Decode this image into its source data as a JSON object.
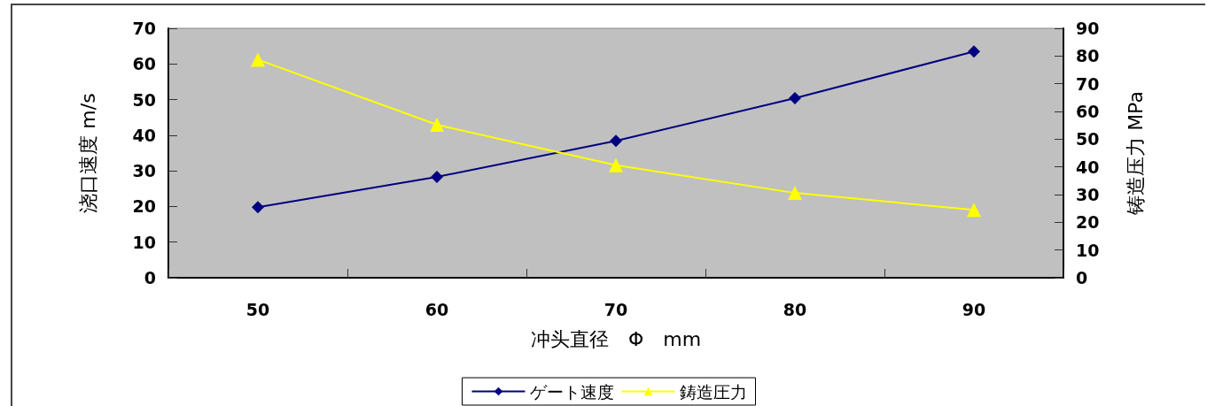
{
  "chart_data": {
    "type": "line",
    "categories": [
      "50",
      "60",
      "70",
      "80",
      "90"
    ],
    "xlabel": "冲头直径　Φ　mm",
    "ylabel": "浇口速度 m/s",
    "y2label": "铸造压力 MPa",
    "series": [
      {
        "name": "ゲート速度",
        "color": "#000080",
        "values": [
          19.8,
          28.3,
          38.4,
          50.4,
          63.5
        ],
        "marker": "diamond"
      },
      {
        "name": "鋳造圧力",
        "color": "#ffff00",
        "values": [
          78.7,
          55.2,
          40.6,
          30.6,
          24.5
        ],
        "marker": "triangle",
        "axis": "y2"
      }
    ],
    "ylim": [
      0,
      70
    ],
    "yticks": [
      0,
      10,
      20,
      30,
      40,
      50,
      60,
      70
    ],
    "y2lim": [
      0,
      90
    ],
    "y2ticks": [
      0,
      10,
      20,
      30,
      40,
      50,
      60,
      70,
      80,
      90
    ],
    "grid": false,
    "legend": "bottom",
    "line_style": "solid"
  }
}
